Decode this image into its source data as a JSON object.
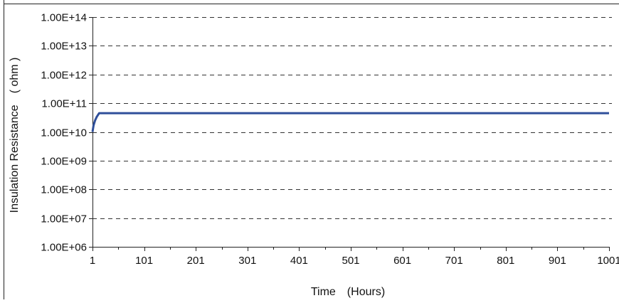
{
  "chart_data": {
    "type": "line",
    "xlabel": "Time　(Hours)",
    "ylabel": "Insulation Resistance　( ohm )",
    "x_ticks": [
      1,
      101,
      201,
      301,
      401,
      501,
      601,
      701,
      801,
      901,
      1001
    ],
    "x_tick_labels": [
      "1",
      "101",
      "201",
      "301",
      "401",
      "501",
      "601",
      "701",
      "801",
      "901",
      "1001"
    ],
    "xlim": [
      1,
      1001
    ],
    "y_scale": "log",
    "ylim": [
      1000000,
      100000000000000
    ],
    "y_ticks": [
      1000000,
      10000000,
      100000000,
      1000000000,
      10000000000,
      100000000000,
      1000000000000,
      10000000000000,
      100000000000000
    ],
    "y_tick_labels": [
      "1.00E+06",
      "1.00E+07",
      "1.00E+08",
      "1.00E+09",
      "1.00E+10",
      "1.00E+11",
      "1.00E+12",
      "1.00E+13",
      "1.00E+14"
    ],
    "grid": "horizontal dashed",
    "series": [
      {
        "color": "#2f4f9a",
        "points": [
          [
            1,
            10000000000
          ],
          [
            3,
            17000000000
          ],
          [
            6,
            25000000000
          ],
          [
            9,
            33000000000
          ],
          [
            12,
            40000000000
          ],
          [
            14,
            45000000000
          ],
          [
            1001,
            45000000000
          ]
        ]
      }
    ]
  }
}
